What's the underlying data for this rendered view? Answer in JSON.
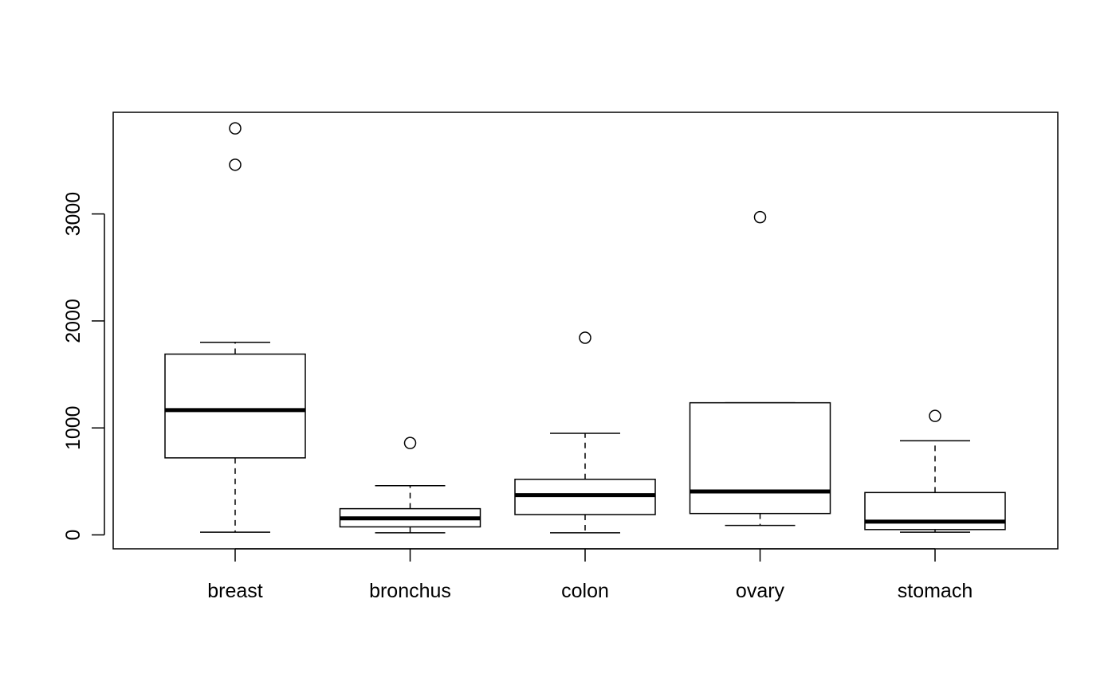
{
  "chart_data": {
    "type": "boxplot",
    "title": "",
    "xlabel": "",
    "ylabel": "",
    "ylim": [
      -130,
      3950
    ],
    "yticks": [
      0,
      1000,
      2000,
      3000
    ],
    "ytick_labels": [
      "0",
      "1000",
      "2000",
      "3000"
    ],
    "grid": false,
    "categories": [
      "breast",
      "bronchus",
      "colon",
      "ovary",
      "stomach"
    ],
    "boxes": [
      {
        "label": "breast",
        "whisker_low": 25,
        "q1": 720,
        "median": 1166,
        "q3": 1690,
        "whisker_high": 1800,
        "outliers": [
          3460,
          3800
        ]
      },
      {
        "label": "bronchus",
        "whisker_low": 20,
        "q1": 75,
        "median": 155,
        "q3": 245,
        "whisker_high": 460,
        "outliers": [
          859
        ]
      },
      {
        "label": "colon",
        "whisker_low": 20,
        "q1": 190,
        "median": 372,
        "q3": 520,
        "whisker_high": 950,
        "outliers": [
          1843
        ]
      },
      {
        "label": "ovary",
        "whisker_low": 89,
        "q1": 200,
        "median": 406,
        "q3": 1235,
        "whisker_high": 1235,
        "outliers": [
          2970
        ]
      },
      {
        "label": "stomach",
        "whisker_low": 25,
        "q1": 50,
        "median": 124,
        "q3": 396,
        "whisker_high": 880,
        "outliers": [
          1112
        ]
      }
    ]
  }
}
